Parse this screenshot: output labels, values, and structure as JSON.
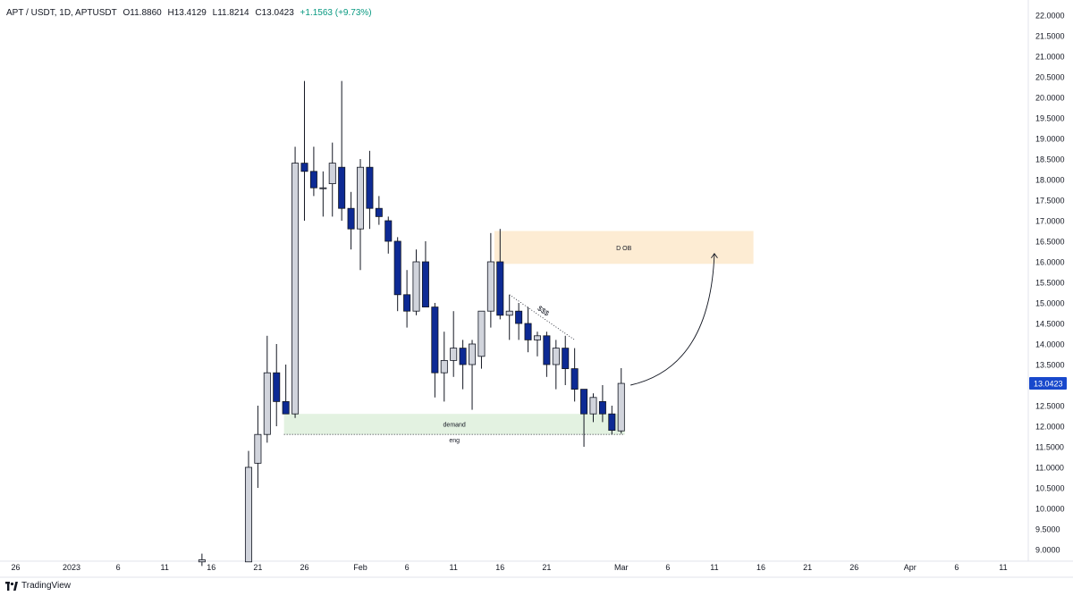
{
  "header": {
    "symbol": "APT / USDT, 1D, APTUSDT",
    "open": "O11.8860",
    "high": "H13.4129",
    "low": "L11.8214",
    "close": "C13.0423",
    "change": "+1.1563 (+9.73%)"
  },
  "branding": {
    "name": "TradingView"
  },
  "colors": {
    "bull_fill": "#d1d4dc",
    "bear_fill": "#0d2a94",
    "candle_outline": "#131722",
    "demand_zone": "#e3f2e1",
    "ob_zone": "#fdecd3",
    "price_badge": "#1848cc"
  },
  "chart_data": {
    "type": "candlestick",
    "ylim": [
      8.8,
      22.2
    ],
    "y_ticks": [
      "9.0000",
      "9.5000",
      "10.0000",
      "10.5000",
      "11.0000",
      "11.5000",
      "12.0000",
      "12.5000",
      "13.0000",
      "13.5000",
      "14.0000",
      "14.5000",
      "15.0000",
      "15.5000",
      "16.0000",
      "16.5000",
      "17.0000",
      "17.5000",
      "18.0000",
      "18.5000",
      "19.0000",
      "19.5000",
      "20.0000",
      "20.5000",
      "21.0000",
      "21.5000",
      "22.0000"
    ],
    "x_ticks": [
      "26",
      "2023",
      "6",
      "11",
      "16",
      "21",
      "26",
      "Feb",
      "6",
      "11",
      "16",
      "21",
      "Mar",
      "6",
      "11",
      "16",
      "21",
      "26",
      "Apr",
      "6",
      "11"
    ],
    "last_price_label": "13.0423",
    "last_price": 13.0423,
    "candles": [
      {
        "date": "2023-01-15",
        "open": 8.7,
        "high": 8.9,
        "low": 8.6,
        "close": 8.75
      },
      {
        "date": "2023-01-20",
        "open": 8.7,
        "high": 11.4,
        "low": 8.7,
        "close": 11.0
      },
      {
        "date": "2023-01-21",
        "open": 11.1,
        "high": 12.5,
        "low": 10.5,
        "close": 11.8
      },
      {
        "date": "2023-01-22",
        "open": 11.8,
        "high": 14.2,
        "low": 11.6,
        "close": 13.3
      },
      {
        "date": "2023-01-23",
        "open": 13.3,
        "high": 14.0,
        "low": 12.0,
        "close": 12.6
      },
      {
        "date": "2023-01-24",
        "open": 12.6,
        "high": 13.5,
        "low": 12.3,
        "close": 12.3
      },
      {
        "date": "2023-01-25",
        "open": 12.3,
        "high": 18.8,
        "low": 12.2,
        "close": 18.4
      },
      {
        "date": "2023-01-26",
        "open": 18.4,
        "high": 20.4,
        "low": 17.0,
        "close": 18.2
      },
      {
        "date": "2023-01-27",
        "open": 18.2,
        "high": 18.8,
        "low": 17.6,
        "close": 17.8
      },
      {
        "date": "2023-01-28",
        "open": 17.8,
        "high": 18.2,
        "low": 17.1,
        "close": 17.8
      },
      {
        "date": "2023-01-29",
        "open": 17.9,
        "high": 18.9,
        "low": 17.1,
        "close": 18.4
      },
      {
        "date": "2023-01-30",
        "open": 18.3,
        "high": 20.4,
        "low": 17.0,
        "close": 17.3
      },
      {
        "date": "2023-01-31",
        "open": 17.3,
        "high": 17.7,
        "low": 16.3,
        "close": 16.8
      },
      {
        "date": "2023-02-01",
        "open": 16.8,
        "high": 18.5,
        "low": 15.8,
        "close": 18.3
      },
      {
        "date": "2023-02-02",
        "open": 18.3,
        "high": 18.7,
        "low": 16.8,
        "close": 17.3
      },
      {
        "date": "2023-02-03",
        "open": 17.3,
        "high": 17.6,
        "low": 16.9,
        "close": 17.1
      },
      {
        "date": "2023-02-04",
        "open": 17.0,
        "high": 17.1,
        "low": 16.2,
        "close": 16.5
      },
      {
        "date": "2023-02-05",
        "open": 16.5,
        "high": 16.6,
        "low": 14.8,
        "close": 15.2
      },
      {
        "date": "2023-02-06",
        "open": 15.2,
        "high": 15.8,
        "low": 14.4,
        "close": 14.8
      },
      {
        "date": "2023-02-07",
        "open": 14.8,
        "high": 16.3,
        "low": 14.7,
        "close": 16.0
      },
      {
        "date": "2023-02-08",
        "open": 16.0,
        "high": 16.5,
        "low": 14.9,
        "close": 14.9
      },
      {
        "date": "2023-02-09",
        "open": 14.9,
        "high": 15.0,
        "low": 12.7,
        "close": 13.3
      },
      {
        "date": "2023-02-10",
        "open": 13.3,
        "high": 14.3,
        "low": 12.6,
        "close": 13.6
      },
      {
        "date": "2023-02-11",
        "open": 13.6,
        "high": 14.8,
        "low": 13.2,
        "close": 13.9
      },
      {
        "date": "2023-02-12",
        "open": 13.9,
        "high": 14.1,
        "low": 12.9,
        "close": 13.5
      },
      {
        "date": "2023-02-13",
        "open": 13.5,
        "high": 14.1,
        "low": 12.4,
        "close": 14.0
      },
      {
        "date": "2023-02-14",
        "open": 13.7,
        "high": 14.8,
        "low": 13.4,
        "close": 14.8
      },
      {
        "date": "2023-02-15",
        "open": 14.8,
        "high": 16.7,
        "low": 14.4,
        "close": 16.0
      },
      {
        "date": "2023-02-16",
        "open": 16.0,
        "high": 16.8,
        "low": 14.6,
        "close": 14.7
      },
      {
        "date": "2023-02-17",
        "open": 14.7,
        "high": 15.2,
        "low": 14.1,
        "close": 14.8
      },
      {
        "date": "2023-02-18",
        "open": 14.8,
        "high": 15.0,
        "low": 14.1,
        "close": 14.5
      },
      {
        "date": "2023-02-19",
        "open": 14.5,
        "high": 14.9,
        "low": 13.8,
        "close": 14.1
      },
      {
        "date": "2023-02-20",
        "open": 14.1,
        "high": 14.3,
        "low": 13.7,
        "close": 14.2
      },
      {
        "date": "2023-02-21",
        "open": 14.2,
        "high": 14.3,
        "low": 13.2,
        "close": 13.5
      },
      {
        "date": "2023-02-22",
        "open": 13.5,
        "high": 14.1,
        "low": 12.9,
        "close": 13.9
      },
      {
        "date": "2023-02-23",
        "open": 13.9,
        "high": 14.2,
        "low": 13.0,
        "close": 13.4
      },
      {
        "date": "2023-02-24",
        "open": 13.4,
        "high": 13.9,
        "low": 12.6,
        "close": 12.9
      },
      {
        "date": "2023-02-25",
        "open": 12.9,
        "high": 12.9,
        "low": 11.5,
        "close": 12.3
      },
      {
        "date": "2023-02-26",
        "open": 12.3,
        "high": 12.8,
        "low": 12.1,
        "close": 12.7
      },
      {
        "date": "2023-02-27",
        "open": 12.6,
        "high": 13.0,
        "low": 12.1,
        "close": 12.3
      },
      {
        "date": "2023-02-28",
        "open": 12.3,
        "high": 12.5,
        "low": 11.8,
        "close": 11.9
      },
      {
        "date": "2023-03-01",
        "open": 11.886,
        "high": 13.4129,
        "low": 11.8214,
        "close": 13.0423
      }
    ],
    "annotations": {
      "demand": {
        "label": "demand",
        "y_from": 11.8,
        "y_to": 12.3,
        "x_from": "2023-01-24",
        "x_to": "2023-03-01"
      },
      "eng": {
        "label": "eng",
        "y": 11.8
      },
      "ob": {
        "label": "D OB",
        "y_from": 15.95,
        "y_to": 16.75,
        "x_from": "2023-02-15",
        "x_to": "2023-03-15"
      },
      "sss": {
        "label": "$$$",
        "from": {
          "date": "2023-02-17",
          "y": 15.2
        },
        "to": {
          "date": "2023-02-24",
          "y": 14.1
        }
      },
      "arrow": {
        "from": {
          "date": "2023-03-02",
          "y": 13.0
        },
        "to": {
          "date": "2023-03-11",
          "y": 16.2
        }
      }
    }
  }
}
